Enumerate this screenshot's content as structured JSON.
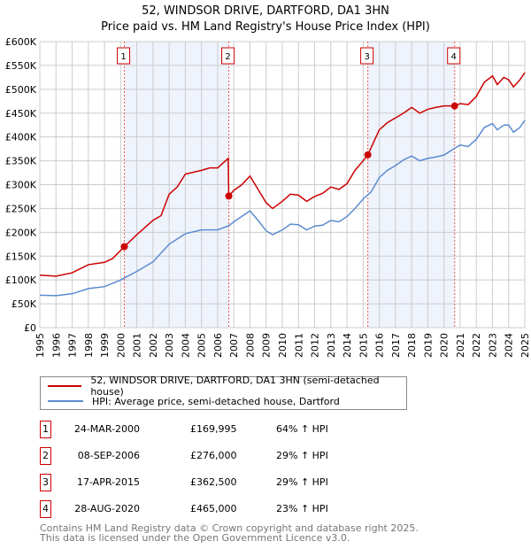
{
  "chart_data": {
    "type": "line",
    "title": "52, WINDSOR DRIVE, DARTFORD, DA1 3HN",
    "subtitle": "Price paid vs. HM Land Registry's House Price Index (HPI)",
    "xlim": [
      1995,
      2025
    ],
    "ylim": [
      0,
      600000
    ],
    "x_ticks": [
      "1995",
      "1996",
      "1997",
      "1998",
      "1999",
      "2000",
      "2001",
      "2002",
      "2003",
      "2004",
      "2005",
      "2006",
      "2007",
      "2008",
      "2009",
      "2010",
      "2011",
      "2012",
      "2013",
      "2014",
      "2015",
      "2016",
      "2017",
      "2018",
      "2019",
      "2020",
      "2021",
      "2022",
      "2023",
      "2024",
      "2025"
    ],
    "y_ticks": [
      "£0",
      "£50K",
      "£100K",
      "£150K",
      "£200K",
      "£250K",
      "£300K",
      "£350K",
      "£400K",
      "£450K",
      "£500K",
      "£550K",
      "£600K"
    ],
    "grid": true,
    "series": [
      {
        "name": "52, WINDSOR DRIVE, DARTFORD, DA1 3HN (semi-detached house)",
        "color": "#cc0000",
        "points": [
          [
            1995,
            110
          ],
          [
            1996,
            108
          ],
          [
            1997,
            115
          ],
          [
            1998,
            132
          ],
          [
            1999,
            137
          ],
          [
            1999.5,
            145
          ],
          [
            2000.23,
            170
          ],
          [
            2001,
            195
          ],
          [
            2002,
            225
          ],
          [
            2002.5,
            235
          ],
          [
            2003,
            280
          ],
          [
            2003.5,
            295
          ],
          [
            2004,
            322
          ],
          [
            2005,
            330
          ],
          [
            2005.5,
            335
          ],
          [
            2006,
            335
          ],
          [
            2006.65,
            355
          ],
          [
            2006.69,
            276
          ],
          [
            2007,
            288
          ],
          [
            2007.5,
            300
          ],
          [
            2008,
            318
          ],
          [
            2008.5,
            290
          ],
          [
            2009,
            262
          ],
          [
            2009.4,
            250
          ],
          [
            2010,
            265
          ],
          [
            2010.5,
            280
          ],
          [
            2011,
            278
          ],
          [
            2011.5,
            265
          ],
          [
            2012,
            275
          ],
          [
            2012.5,
            282
          ],
          [
            2013,
            295
          ],
          [
            2013.5,
            290
          ],
          [
            2014,
            302
          ],
          [
            2014.5,
            330
          ],
          [
            2015,
            350
          ],
          [
            2015.29,
            362.5
          ],
          [
            2016,
            415
          ],
          [
            2016.5,
            430
          ],
          [
            2017,
            440
          ],
          [
            2017.5,
            450
          ],
          [
            2018,
            462
          ],
          [
            2018.5,
            450
          ],
          [
            2019,
            458
          ],
          [
            2019.5,
            462
          ],
          [
            2020,
            465
          ],
          [
            2020.66,
            465
          ],
          [
            2021,
            470
          ],
          [
            2021.5,
            468
          ],
          [
            2022,
            485
          ],
          [
            2022.5,
            515
          ],
          [
            2023,
            528
          ],
          [
            2023.3,
            510
          ],
          [
            2023.7,
            525
          ],
          [
            2024,
            520
          ],
          [
            2024.3,
            505
          ],
          [
            2024.7,
            520
          ],
          [
            2025,
            535
          ]
        ]
      },
      {
        "name": "HPI: Average price, semi-detached house, Dartford",
        "color": "#5b8bd0",
        "points": [
          [
            1995,
            68
          ],
          [
            1996,
            67
          ],
          [
            1997,
            71
          ],
          [
            1998,
            82
          ],
          [
            1999,
            86
          ],
          [
            2000,
            100
          ],
          [
            2001,
            118
          ],
          [
            2002,
            138
          ],
          [
            2003,
            175
          ],
          [
            2004,
            197
          ],
          [
            2005,
            205
          ],
          [
            2006,
            205
          ],
          [
            2006.7,
            214
          ],
          [
            2007,
            222
          ],
          [
            2008,
            245
          ],
          [
            2008.5,
            225
          ],
          [
            2009,
            203
          ],
          [
            2009.4,
            195
          ],
          [
            2010,
            205
          ],
          [
            2010.5,
            217
          ],
          [
            2011,
            216
          ],
          [
            2011.5,
            205
          ],
          [
            2012,
            213
          ],
          [
            2012.5,
            215
          ],
          [
            2013,
            225
          ],
          [
            2013.5,
            222
          ],
          [
            2014,
            233
          ],
          [
            2014.5,
            250
          ],
          [
            2015,
            270
          ],
          [
            2015.5,
            285
          ],
          [
            2016,
            315
          ],
          [
            2016.5,
            330
          ],
          [
            2017,
            340
          ],
          [
            2017.5,
            352
          ],
          [
            2018,
            360
          ],
          [
            2018.5,
            350
          ],
          [
            2019,
            355
          ],
          [
            2019.5,
            358
          ],
          [
            2020,
            362
          ],
          [
            2020.6,
            375
          ],
          [
            2021,
            383
          ],
          [
            2021.5,
            380
          ],
          [
            2022,
            395
          ],
          [
            2022.5,
            420
          ],
          [
            2023,
            428
          ],
          [
            2023.3,
            415
          ],
          [
            2023.7,
            425
          ],
          [
            2024,
            425
          ],
          [
            2024.3,
            410
          ],
          [
            2024.7,
            420
          ],
          [
            2025,
            435
          ]
        ]
      }
    ],
    "y_unit": "thousand GBP",
    "sales": [
      {
        "label": "1",
        "x": 2000.23,
        "value": 169995,
        "date": "24-MAR-2000",
        "price": "£169,995",
        "hpi": "64% ↑ HPI"
      },
      {
        "label": "2",
        "x": 2006.69,
        "value": 276000,
        "date": "08-SEP-2006",
        "price": "£276,000",
        "hpi": "29% ↑ HPI"
      },
      {
        "label": "3",
        "x": 2015.29,
        "value": 362500,
        "date": "17-APR-2015",
        "price": "£362,500",
        "hpi": "29% ↑ HPI"
      },
      {
        "label": "4",
        "x": 2020.66,
        "value": 465000,
        "date": "28-AUG-2020",
        "price": "£465,000",
        "hpi": "23% ↑ HPI"
      }
    ],
    "shaded_periods": [
      [
        2000.23,
        2006.69
      ],
      [
        2015.29,
        2020.66
      ]
    ]
  },
  "legend": {
    "property": "52, WINDSOR DRIVE, DARTFORD, DA1 3HN (semi-detached house)",
    "hpi": "HPI: Average price, semi-detached house, Dartford"
  },
  "footer": {
    "line1": "Contains HM Land Registry data © Crown copyright and database right 2025.",
    "line2": "This data is licensed under the Open Government Licence v3.0."
  }
}
